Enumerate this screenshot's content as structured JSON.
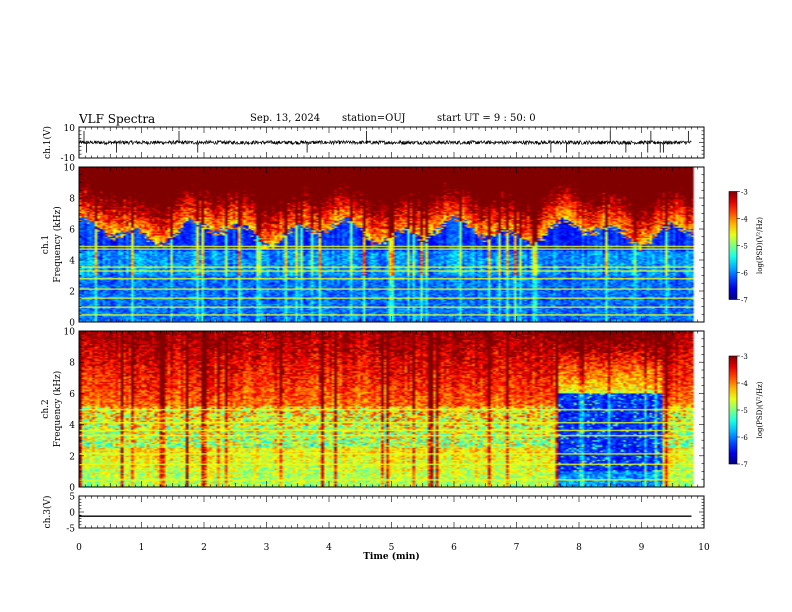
{
  "header": {
    "title": "VLF Spectra",
    "date": "Sep. 13, 2024",
    "station": "station=OUJ",
    "start_ut": "start UT =  9 : 50: 0"
  },
  "chart_data": [
    {
      "type": "line",
      "panel": "ch1-waveform",
      "ylabel": "ch.1(V)",
      "ylim": [
        -10,
        10
      ],
      "yticks": [
        "10",
        "-10"
      ],
      "xlim": [
        0,
        10
      ],
      "x_end": 9.8,
      "baseline": 0,
      "noise_amplitude": 1.2,
      "spikes": [
        0.08,
        0.12,
        0.6,
        1.6,
        1.9,
        3.65,
        4.6,
        7.55,
        7.8,
        8.5,
        8.75,
        9.1,
        9.15,
        9.3,
        9.35,
        9.75
      ]
    },
    {
      "type": "heatmap",
      "panel": "ch1-spectrogram",
      "ylabel_line1": "ch.1",
      "ylabel_line2": "Frequency (kHz)",
      "ylim": [
        0,
        10
      ],
      "yticks": [
        "0",
        "2",
        "4",
        "6",
        "8",
        "10"
      ],
      "xlim": [
        0,
        10
      ],
      "x_end": 9.8,
      "colorbar": {
        "label": "log(PSD)(V²/Hz)",
        "min": -7,
        "max": -3,
        "ticks": [
          "-3",
          "-4",
          "-5",
          "-6",
          "-7"
        ]
      },
      "lines_khz": [
        0.4,
        0.9,
        1.5,
        2.1,
        2.8,
        3.3,
        3.5,
        4.7,
        4.9
      ]
    },
    {
      "type": "heatmap",
      "panel": "ch2-spectrogram",
      "ylabel_line1": "ch.2",
      "ylabel_line2": "Frequency (kHz)",
      "ylim": [
        0,
        10
      ],
      "yticks": [
        "0",
        "2",
        "4",
        "6",
        "8",
        "10"
      ],
      "xlim": [
        0,
        10
      ],
      "x_end": 9.8,
      "colorbar": {
        "label": "log(PSD)(V²/Hz)",
        "min": -7,
        "max": -3,
        "ticks": [
          "-3",
          "-4",
          "-5",
          "-6",
          "-7"
        ]
      },
      "quiet_interval_min": [
        7.65,
        9.3
      ],
      "lines_khz": [
        0.4,
        1.4,
        2.1,
        3.3,
        3.6,
        4.1,
        5.0
      ]
    },
    {
      "type": "line",
      "panel": "ch3-waveform",
      "ylabel": "ch.3(V)",
      "ylim": [
        -5,
        5
      ],
      "yticks": [
        "5",
        "0",
        "-5"
      ],
      "xlim": [
        0,
        10
      ],
      "x_end": 9.8,
      "values_x": [
        0,
        9.8
      ],
      "values_y": [
        -1.3,
        -1.3
      ]
    }
  ],
  "xaxis": {
    "label": "Time (min)",
    "ticks": [
      "0",
      "1",
      "2",
      "3",
      "4",
      "5",
      "6",
      "7",
      "8",
      "9",
      "10"
    ]
  }
}
